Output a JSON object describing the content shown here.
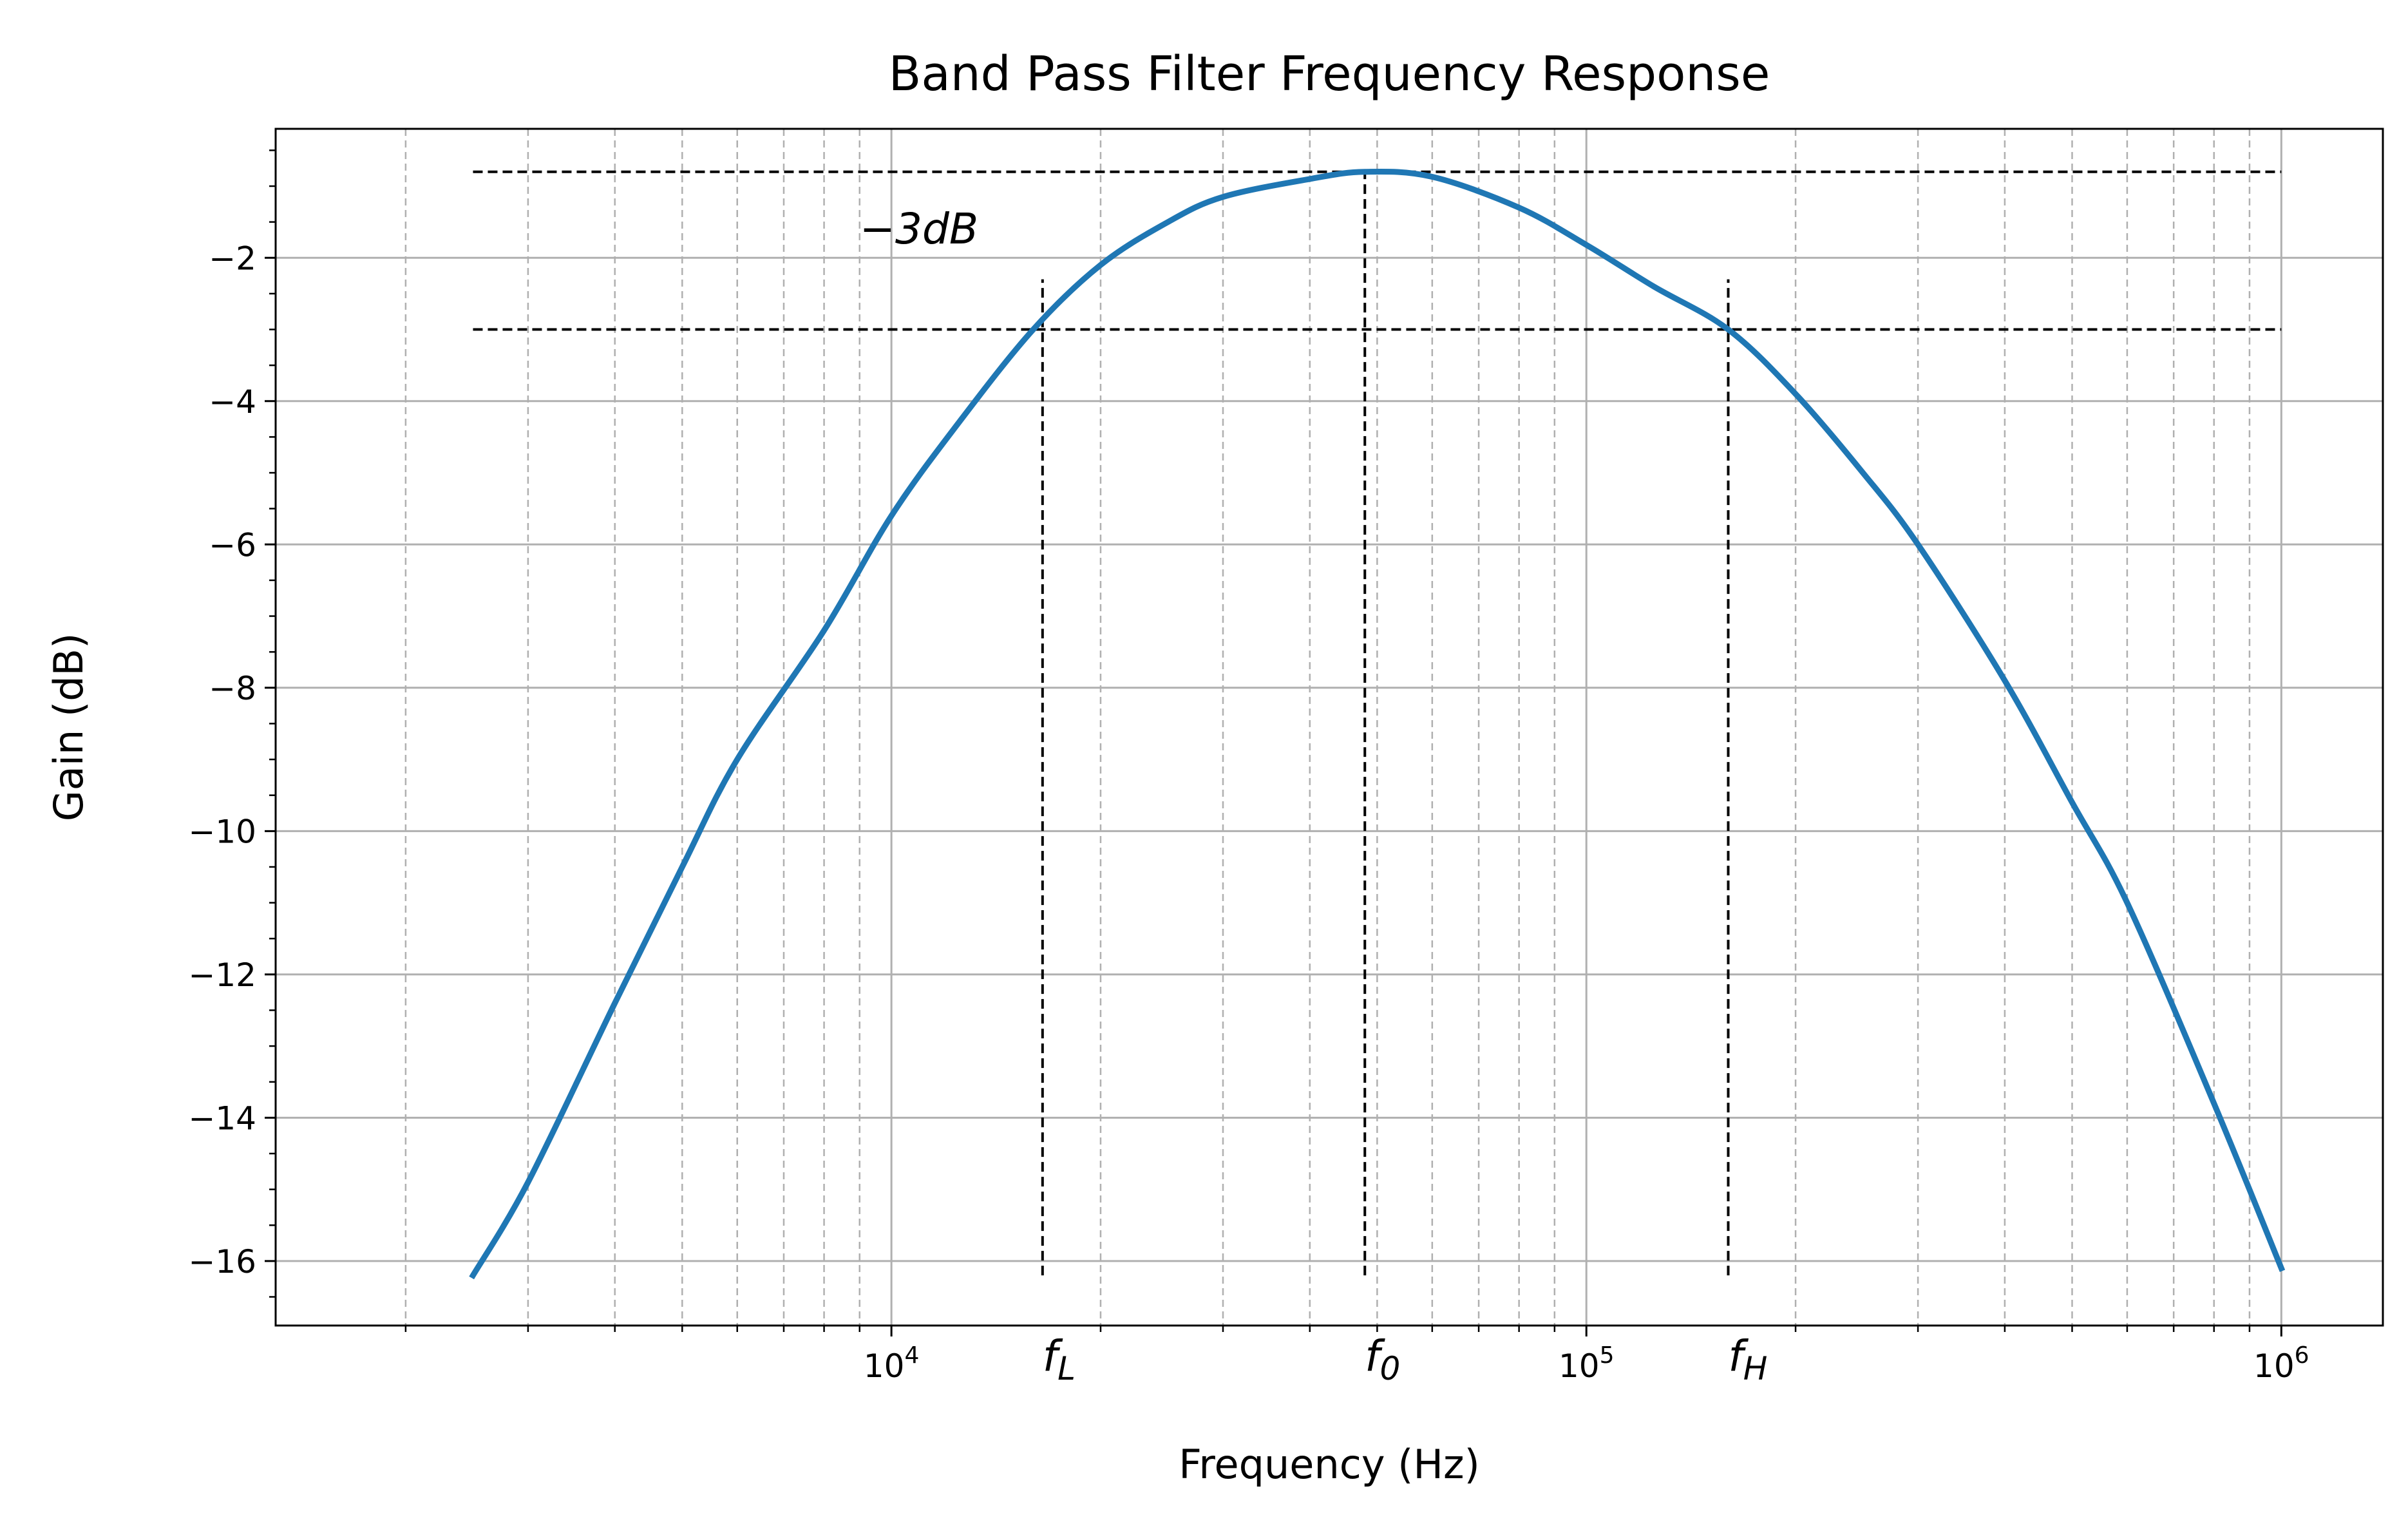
{
  "chart_data": {
    "type": "line",
    "title": "Band Pass Filter Frequency Response",
    "xlabel": "Frequency (Hz)",
    "ylabel": "Gain (dB)",
    "xscale": "log",
    "xlim": [
      1300,
      1400000
    ],
    "ylim": [
      -16.9,
      -0.2
    ],
    "xticks": [
      {
        "value": 10000,
        "base": "10",
        "exp": "4"
      },
      {
        "value": 100000,
        "base": "10",
        "exp": "5"
      },
      {
        "value": 1000000,
        "base": "10",
        "exp": "6"
      }
    ],
    "yticks": [
      -16,
      -14,
      -12,
      -10,
      -8,
      -6,
      -4,
      -2
    ],
    "ytick_labels": [
      "−16",
      "−14",
      "−12",
      "−10",
      "−8",
      "−6",
      "−4",
      "−2"
    ],
    "grid": true,
    "series": [
      {
        "color": "#1f77b4",
        "x": [
          2500,
          3000,
          4000,
          5000,
          6000,
          8000,
          10000,
          12500,
          16000,
          20000,
          25000,
          30000,
          40000,
          48000,
          60000,
          80000,
          100000,
          125000,
          160000,
          200000,
          250000,
          300000,
          400000,
          500000,
          600000,
          800000,
          1000000
        ],
        "y": [
          -16.2,
          -14.9,
          -12.4,
          -10.5,
          -9.0,
          -7.2,
          -5.6,
          -4.3,
          -3.0,
          -2.1,
          -1.5,
          -1.15,
          -0.9,
          -0.8,
          -0.87,
          -1.3,
          -1.82,
          -2.4,
          -3.0,
          -3.9,
          -5.0,
          -6.0,
          -7.9,
          -9.6,
          -11.0,
          -13.8,
          -16.1
        ]
      }
    ],
    "reference_lines": {
      "peak_gain": -0.8,
      "minus3db_gain": -3.0,
      "x_range": [
        2500,
        1000000
      ],
      "vertical": [
        {
          "x": 16500,
          "y_from": -16.2,
          "y_to": -2.3
        },
        {
          "x": 48000,
          "y_from": -16.2,
          "y_to": -0.8
        },
        {
          "x": 160000,
          "y_from": -16.2,
          "y_to": -2.3
        }
      ]
    },
    "annotations": [
      {
        "text": "−3dB",
        "x": 9000,
        "y": -1.8
      },
      {
        "text": "f",
        "sub": "L",
        "x": 16500,
        "y": -16.9
      },
      {
        "text": "f",
        "sub": "0",
        "x": 48000,
        "y": -16.9
      },
      {
        "text": "f",
        "sub": "H",
        "x": 160000,
        "y": -16.9
      }
    ]
  }
}
